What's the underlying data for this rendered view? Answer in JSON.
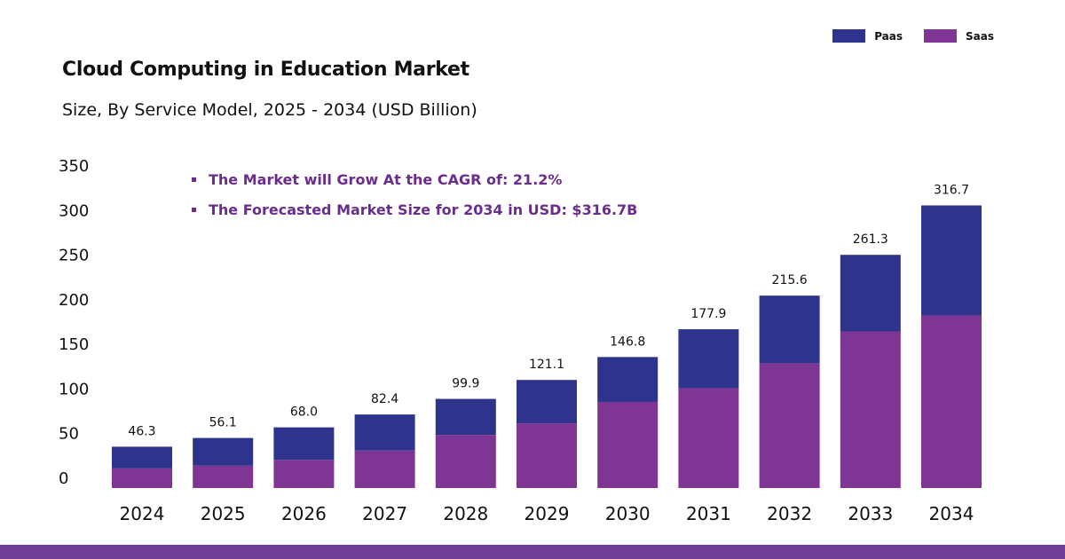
{
  "colors": {
    "paas": "#2e348c",
    "saas": "#7f3593",
    "accent": "#6b2d8c",
    "band": "#6f3d96"
  },
  "chart_data": {
    "type": "bar",
    "stacked": true,
    "title": "Cloud Computing in Education Market",
    "subtitle": "Size, By Service Model, 2025 - 2034 (USD Billion)",
    "categories": [
      "2024",
      "2025",
      "2026",
      "2027",
      "2028",
      "2029",
      "2030",
      "2031",
      "2032",
      "2033",
      "2034"
    ],
    "series": [
      {
        "name": "Saas",
        "values": [
          22.0,
          25.0,
          31.5,
          42.0,
          59.5,
          72.5,
          96.5,
          111.8,
          139.8,
          175.5,
          193.3
        ]
      },
      {
        "name": "Paas",
        "values": [
          24.3,
          31.1,
          36.5,
          40.4,
          40.4,
          48.6,
          50.3,
          66.1,
          75.8,
          85.8,
          123.4
        ]
      }
    ],
    "totals": [
      "46.3",
      "56.1",
      "68.0",
      "82.4",
      "99.9",
      "121.1",
      "146.8",
      "177.9",
      "215.6",
      "261.3",
      "316.7"
    ],
    "yticks": [
      "350",
      "300",
      "250",
      "200",
      "150",
      "100",
      "50",
      "0"
    ],
    "ylim": [
      0,
      350
    ],
    "legend_position": "top-right",
    "grid": false
  },
  "legend": {
    "paas_label": "Paas",
    "saas_label": "Saas"
  },
  "notes": [
    "The Market will Grow At the CAGR of: 21.2%",
    "The Forecasted Market Size for 2034 in USD: $316.7B"
  ]
}
